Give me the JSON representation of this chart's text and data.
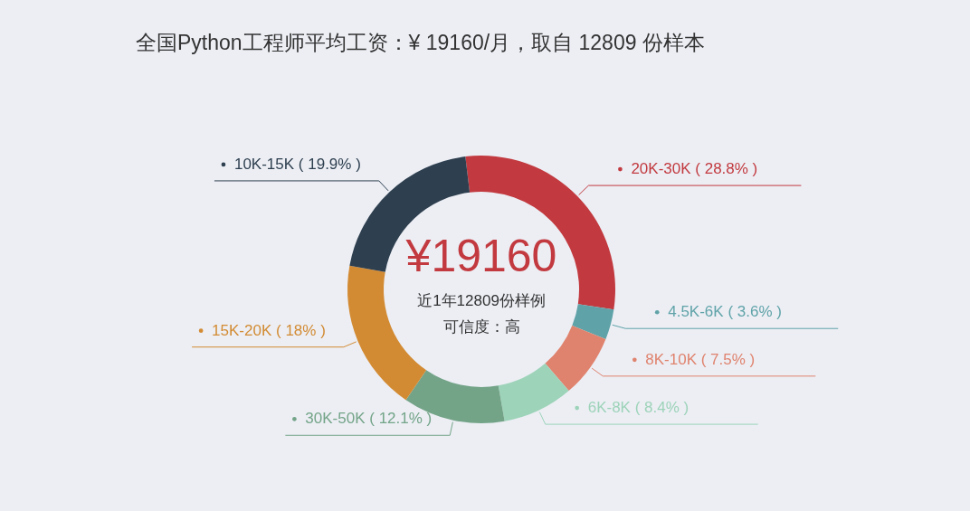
{
  "chart_data": {
    "type": "donut",
    "title": "全国Python工程师平均工资：¥ 19160/月，取自 12809 份样本",
    "categories": [
      "20K-30K",
      "4.5K-6K",
      "8K-10K",
      "6K-8K",
      "30K-50K",
      "15K-20K",
      "10K-15K"
    ],
    "values": [
      28.8,
      3.6,
      7.5,
      8.4,
      12.1,
      18,
      19.9
    ],
    "value_labels": [
      "( 28.8% )",
      "( 3.6% )",
      "( 7.5% )",
      "( 8.4% )",
      "( 12.1% )",
      "( 18% )",
      "( 19.9% )"
    ],
    "colors": [
      "#c23a3f",
      "#5fa3a8",
      "#e0836e",
      "#9dd3b9",
      "#74a488",
      "#d38b33",
      "#2e3f4f"
    ],
    "annotations": [
      "¥19160",
      "近1年12809份样例",
      "可信度：高"
    ]
  }
}
